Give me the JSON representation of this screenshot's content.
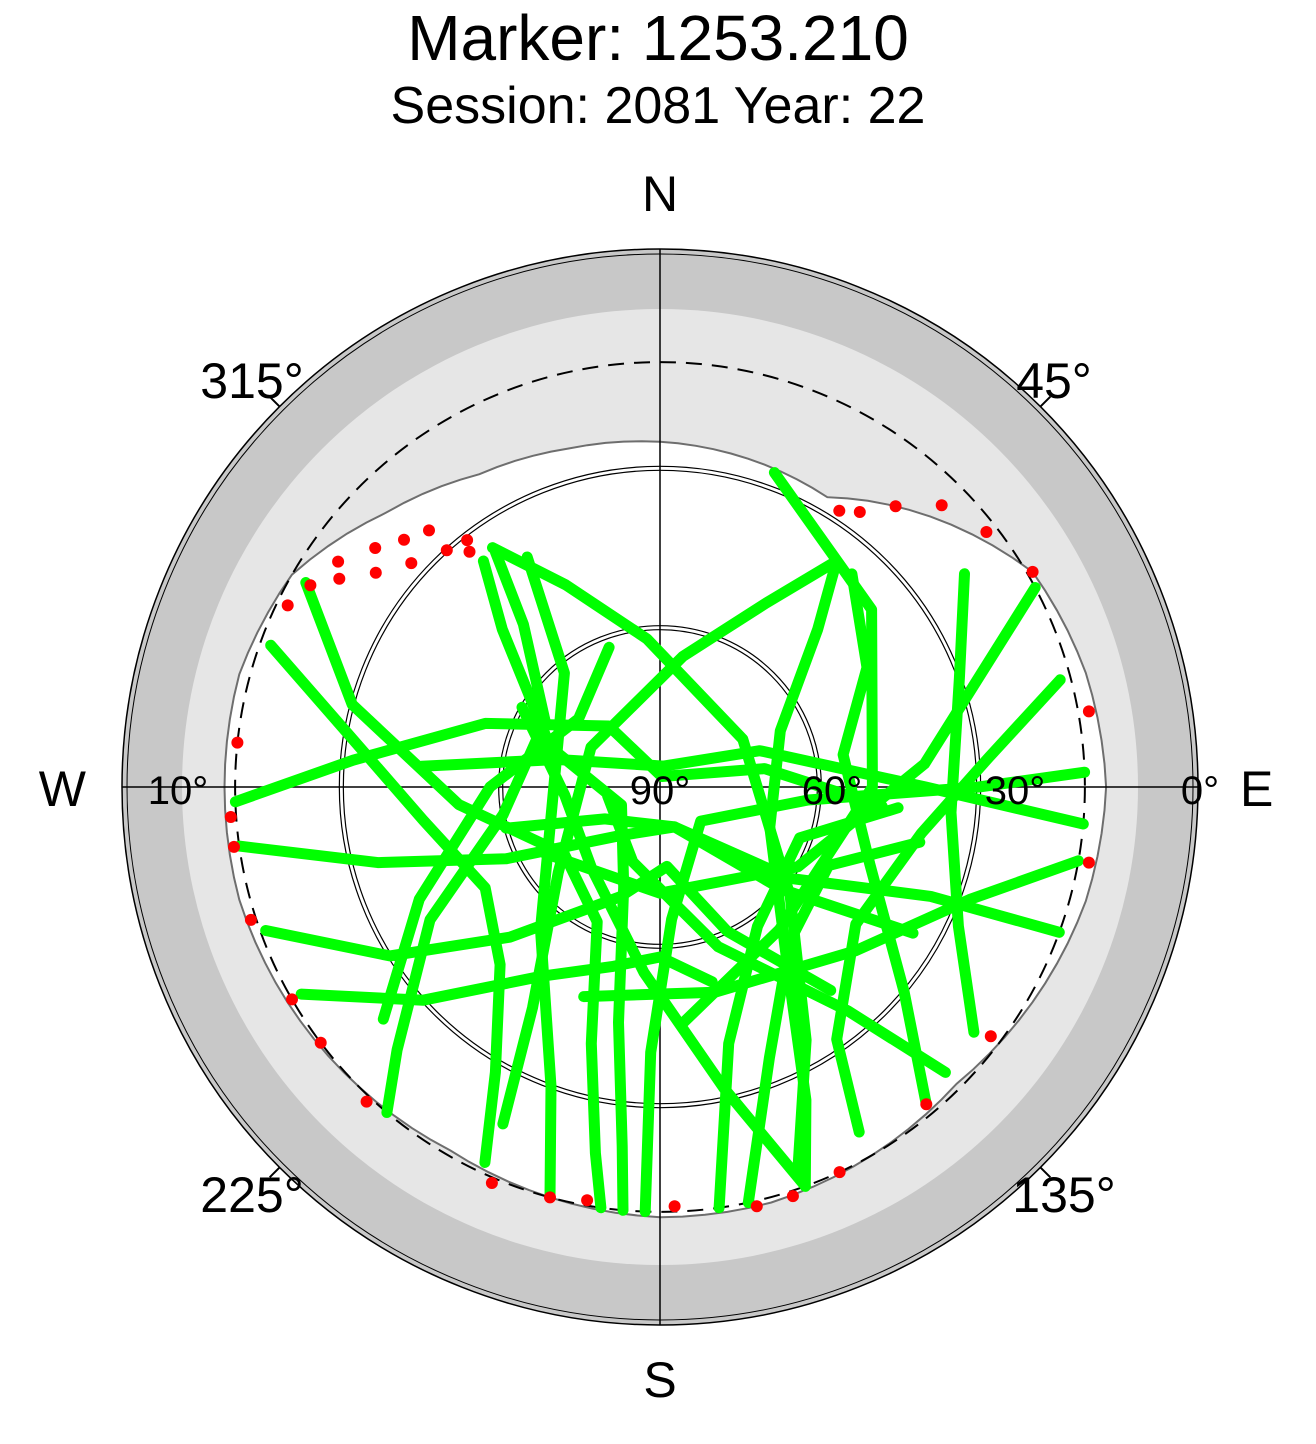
{
  "title": "Marker: 1253.210",
  "subtitle": "Session: 2081 Year: 22",
  "chart_data": {
    "type": "polar-skyplot",
    "title": "Marker: 1253.210",
    "subtitle": "Session: 2081 Year: 22",
    "directions": {
      "north": "N",
      "south": "S",
      "east": "E",
      "west": "W"
    },
    "azimuth_ticks": [
      {
        "az": 45,
        "label": "45°"
      },
      {
        "az": 135,
        "label": "135°"
      },
      {
        "az": 225,
        "label": "225°"
      },
      {
        "az": 315,
        "label": "315°"
      }
    ],
    "elevation_ticks": [
      {
        "el": 90,
        "label": "90°"
      },
      {
        "el": 60,
        "label": "60°"
      },
      {
        "el": 30,
        "label": "30°"
      },
      {
        "el": 0,
        "label": "0°"
      },
      {
        "el": 10,
        "label": "10°",
        "side": "west"
      }
    ],
    "elevation_circles": [
      60,
      30
    ],
    "cutoff_elevation": 10,
    "colors": {
      "good_track": "#00ff00",
      "flagged_obs": "#ff0000",
      "masked_band": "#c8c8c8",
      "visibility_band": "#e6e6e6",
      "inner_field": "#ffffff",
      "axis": "#000000"
    },
    "visibility_horizon": [
      {
        "az": 0,
        "el": 25
      },
      {
        "az": 15,
        "el": 26
      },
      {
        "az": 30,
        "el": 27
      },
      {
        "az": 45,
        "el": 18
      },
      {
        "az": 60,
        "el": 9
      },
      {
        "az": 75,
        "el": 7
      },
      {
        "az": 90,
        "el": 6
      },
      {
        "az": 105,
        "el": 7
      },
      {
        "az": 120,
        "el": 9
      },
      {
        "az": 135,
        "el": 11
      },
      {
        "az": 150,
        "el": 10
      },
      {
        "az": 165,
        "el": 9
      },
      {
        "az": 180,
        "el": 9
      },
      {
        "az": 195,
        "el": 10
      },
      {
        "az": 210,
        "el": 11
      },
      {
        "az": 225,
        "el": 10
      },
      {
        "az": 240,
        "el": 9
      },
      {
        "az": 255,
        "el": 8
      },
      {
        "az": 270,
        "el": 8
      },
      {
        "az": 285,
        "el": 8
      },
      {
        "az": 300,
        "el": 10
      },
      {
        "az": 315,
        "el": 17
      },
      {
        "az": 330,
        "el": 22
      },
      {
        "az": 345,
        "el": 24
      }
    ],
    "tracks": [
      {
        "color": "green",
        "points": [
          {
            "az": 268,
            "el": 10
          },
          {
            "az": 275,
            "el": 32
          },
          {
            "az": 290,
            "el": 55
          },
          {
            "az": 320,
            "el": 75
          },
          {
            "az": 10,
            "el": 88
          },
          {
            "az": 80,
            "el": 70
          },
          {
            "az": 95,
            "el": 48
          }
        ]
      },
      {
        "color": "green",
        "points": [
          {
            "az": 262,
            "el": 10
          },
          {
            "az": 255,
            "el": 35
          },
          {
            "az": 245,
            "el": 58
          },
          {
            "az": 220,
            "el": 78
          },
          {
            "az": 160,
            "el": 82
          },
          {
            "az": 130,
            "el": 60
          },
          {
            "az": 120,
            "el": 35
          }
        ]
      },
      {
        "color": "green",
        "points": [
          {
            "az": 250,
            "el": 11
          },
          {
            "az": 238,
            "el": 30
          },
          {
            "az": 225,
            "el": 50
          },
          {
            "az": 200,
            "el": 68
          },
          {
            "az": 175,
            "el": 75
          },
          {
            "az": 155,
            "el": 60
          },
          {
            "az": 140,
            "el": 40
          }
        ]
      },
      {
        "color": "green",
        "points": [
          {
            "az": 240,
            "el": 12
          },
          {
            "az": 228,
            "el": 30
          },
          {
            "az": 212,
            "el": 48
          },
          {
            "az": 195,
            "el": 55
          },
          {
            "az": 180,
            "el": 58
          },
          {
            "az": 165,
            "el": 52
          }
        ]
      },
      {
        "color": "green",
        "points": [
          {
            "az": 300,
            "el": 13
          },
          {
            "az": 285,
            "el": 30
          },
          {
            "az": 265,
            "el": 52
          },
          {
            "az": 235,
            "el": 68
          },
          {
            "az": 205,
            "el": 62
          },
          {
            "az": 195,
            "el": 40
          },
          {
            "az": 190,
            "el": 20
          },
          {
            "az": 188,
            "el": 10
          }
        ]
      },
      {
        "color": "green",
        "points": [
          {
            "az": 290,
            "el": 12
          },
          {
            "az": 280,
            "el": 30
          },
          {
            "az": 262,
            "el": 45
          },
          {
            "az": 240,
            "el": 52
          },
          {
            "az": 222,
            "el": 45
          },
          {
            "az": 210,
            "el": 28
          },
          {
            "az": 205,
            "el": 12
          }
        ]
      },
      {
        "color": "green",
        "points": [
          {
            "az": 322,
            "el": 36
          },
          {
            "az": 315,
            "el": 48
          },
          {
            "az": 290,
            "el": 68
          },
          {
            "az": 245,
            "el": 82
          },
          {
            "az": 200,
            "el": 70
          },
          {
            "az": 190,
            "el": 45
          },
          {
            "az": 186,
            "el": 22
          },
          {
            "az": 185,
            "el": 10
          }
        ]
      },
      {
        "color": "green",
        "points": [
          {
            "az": 325,
            "el": 36
          },
          {
            "az": 320,
            "el": 50
          },
          {
            "az": 300,
            "el": 65
          },
          {
            "az": 260,
            "el": 60
          },
          {
            "az": 240,
            "el": 40
          },
          {
            "az": 225,
            "el": 20
          },
          {
            "az": 220,
            "el": 10
          }
        ]
      },
      {
        "color": "green",
        "points": [
          {
            "az": 325,
            "el": 35
          },
          {
            "az": 335,
            "el": 48
          },
          {
            "az": 355,
            "el": 62
          },
          {
            "az": 60,
            "el": 72
          },
          {
            "az": 130,
            "el": 58
          },
          {
            "az": 150,
            "el": 35
          },
          {
            "az": 160,
            "el": 14
          }
        ]
      },
      {
        "color": "green",
        "points": [
          {
            "az": 38,
            "el": 36
          },
          {
            "az": 45,
            "el": 48
          },
          {
            "az": 65,
            "el": 65
          },
          {
            "az": 110,
            "el": 68
          },
          {
            "az": 145,
            "el": 48
          },
          {
            "az": 155,
            "el": 25
          },
          {
            "az": 160,
            "el": 10
          }
        ]
      },
      {
        "color": "green",
        "points": [
          {
            "az": 38,
            "el": 36
          },
          {
            "az": 30,
            "el": 50
          },
          {
            "az": 10,
            "el": 65
          },
          {
            "az": 300,
            "el": 75
          },
          {
            "az": 230,
            "el": 65
          },
          {
            "az": 210,
            "el": 42
          },
          {
            "az": 205,
            "el": 20
          }
        ]
      },
      {
        "color": "green",
        "points": [
          {
            "az": 42,
            "el": 36
          },
          {
            "az": 60,
            "el": 45
          },
          {
            "az": 80,
            "el": 55
          },
          {
            "az": 110,
            "el": 48
          },
          {
            "az": 130,
            "el": 30
          },
          {
            "az": 140,
            "el": 12
          }
        ]
      },
      {
        "color": "green",
        "points": [
          {
            "az": 55,
            "el": 20
          },
          {
            "az": 70,
            "el": 30
          },
          {
            "az": 95,
            "el": 35
          },
          {
            "az": 115,
            "el": 28
          },
          {
            "az": 128,
            "el": 15
          }
        ]
      },
      {
        "color": "green",
        "points": [
          {
            "az": 75,
            "el": 12
          },
          {
            "az": 85,
            "el": 28
          },
          {
            "az": 100,
            "el": 40
          },
          {
            "az": 125,
            "el": 45
          },
          {
            "az": 145,
            "el": 32
          },
          {
            "az": 150,
            "el": 15
          }
        ]
      },
      {
        "color": "green",
        "points": [
          {
            "az": 95,
            "el": 10
          },
          {
            "az": 90,
            "el": 40
          },
          {
            "az": 70,
            "el": 70
          },
          {
            "az": 10,
            "el": 86
          },
          {
            "az": 285,
            "el": 70
          },
          {
            "az": 275,
            "el": 45
          }
        ]
      },
      {
        "color": "green",
        "points": [
          {
            "az": 110,
            "el": 10
          },
          {
            "az": 112,
            "el": 35
          },
          {
            "az": 125,
            "el": 60
          },
          {
            "az": 160,
            "el": 82
          },
          {
            "az": 240,
            "el": 78
          },
          {
            "az": 255,
            "el": 60
          }
        ]
      },
      {
        "color": "green",
        "points": [
          {
            "az": 182,
            "el": 10
          },
          {
            "az": 182,
            "el": 40
          },
          {
            "az": 175,
            "el": 65
          },
          {
            "az": 130,
            "el": 80
          },
          {
            "az": 95,
            "el": 62
          },
          {
            "az": 90,
            "el": 30
          },
          {
            "az": 88,
            "el": 10
          }
        ]
      },
      {
        "color": "green",
        "points": [
          {
            "az": 172,
            "el": 10
          },
          {
            "az": 165,
            "el": 40
          },
          {
            "az": 145,
            "el": 58
          },
          {
            "az": 110,
            "el": 62
          },
          {
            "az": 95,
            "el": 45
          }
        ]
      },
      {
        "color": "green",
        "points": [
          {
            "az": 168,
            "el": 10
          },
          {
            "az": 158,
            "el": 35
          },
          {
            "az": 140,
            "el": 52
          },
          {
            "az": 115,
            "el": 55
          },
          {
            "az": 102,
            "el": 40
          }
        ]
      },
      {
        "color": "green",
        "points": [
          {
            "az": 230,
            "el": 22
          },
          {
            "az": 245,
            "el": 40
          },
          {
            "az": 270,
            "el": 58
          },
          {
            "az": 310,
            "el": 70
          },
          {
            "az": 340,
            "el": 62
          }
        ]
      },
      {
        "color": "green",
        "points": [
          {
            "az": 195,
            "el": 10
          },
          {
            "az": 200,
            "el": 30
          },
          {
            "az": 220,
            "el": 55
          },
          {
            "az": 270,
            "el": 70
          },
          {
            "az": 320,
            "el": 62
          },
          {
            "az": 330,
            "el": 40
          }
        ]
      },
      {
        "color": "green",
        "points": [
          {
            "az": 160,
            "el": 10
          },
          {
            "az": 168,
            "el": 32
          },
          {
            "az": 185,
            "el": 55
          },
          {
            "az": 220,
            "el": 70
          },
          {
            "az": 265,
            "el": 72
          },
          {
            "az": 300,
            "el": 60
          }
        ]
      },
      {
        "color": "green",
        "points": [
          {
            "az": 135,
            "el": 14
          },
          {
            "az": 140,
            "el": 35
          },
          {
            "az": 160,
            "el": 58
          },
          {
            "az": 200,
            "el": 75
          },
          {
            "az": 260,
            "el": 80
          }
        ]
      },
      {
        "color": "green",
        "points": [
          {
            "az": 100,
            "el": 10
          },
          {
            "az": 110,
            "el": 28
          },
          {
            "az": 130,
            "el": 42
          },
          {
            "az": 165,
            "el": 50
          },
          {
            "az": 200,
            "el": 48
          }
        ]
      },
      {
        "color": "green",
        "points": [
          {
            "az": 62,
            "el": 10
          },
          {
            "az": 85,
            "el": 40
          },
          {
            "az": 120,
            "el": 60
          },
          {
            "az": 180,
            "el": 70
          },
          {
            "az": 240,
            "el": 65
          }
        ]
      },
      {
        "color": "green",
        "points": [
          {
            "az": 20,
            "el": 27
          },
          {
            "az": 50,
            "el": 38
          },
          {
            "az": 90,
            "el": 50
          },
          {
            "az": 140,
            "el": 55
          },
          {
            "az": 175,
            "el": 45
          }
        ]
      }
    ],
    "flagged_points": [
      {
        "az": 321,
        "el": 33
      },
      {
        "az": 318,
        "el": 30
      },
      {
        "az": 312,
        "el": 27
      },
      {
        "az": 307,
        "el": 23
      },
      {
        "az": 303,
        "el": 18
      },
      {
        "az": 300,
        "el": 14
      },
      {
        "az": 296,
        "el": 12
      },
      {
        "az": 314,
        "el": 23
      },
      {
        "az": 318,
        "el": 25
      },
      {
        "az": 322,
        "el": 31
      },
      {
        "az": 310,
        "el": 20
      },
      {
        "az": 305,
        "el": 16
      },
      {
        "az": 276,
        "el": 10
      },
      {
        "az": 266,
        "el": 9
      },
      {
        "az": 262,
        "el": 9
      },
      {
        "az": 252,
        "el": 9
      },
      {
        "az": 240,
        "el": 10
      },
      {
        "az": 233,
        "el": 10
      },
      {
        "az": 223,
        "el": 9
      },
      {
        "az": 203,
        "el": 9
      },
      {
        "az": 195,
        "el": 10
      },
      {
        "az": 190,
        "el": 11
      },
      {
        "az": 178,
        "el": 11
      },
      {
        "az": 167,
        "el": 9
      },
      {
        "az": 162,
        "el": 9
      },
      {
        "az": 155,
        "el": 10
      },
      {
        "az": 140,
        "el": 12
      },
      {
        "az": 127,
        "el": 12
      },
      {
        "az": 100,
        "el": 8
      },
      {
        "az": 80,
        "el": 8
      },
      {
        "az": 60,
        "el": 9
      },
      {
        "az": 52,
        "el": 12
      },
      {
        "az": 45,
        "el": 15
      },
      {
        "az": 40,
        "el": 21
      },
      {
        "az": 36,
        "el": 26
      },
      {
        "az": 33,
        "el": 28
      }
    ]
  }
}
